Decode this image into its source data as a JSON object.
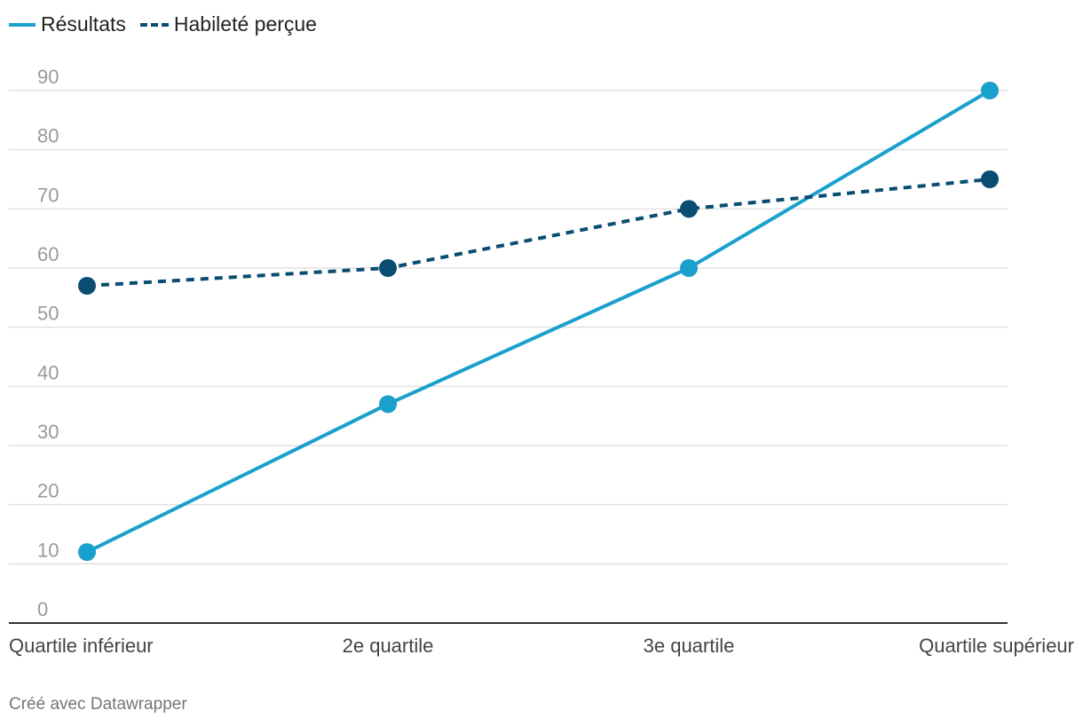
{
  "colors": {
    "series1": "#1aa0cc",
    "series2": "#0a4d72",
    "grid": "#e1e1e1",
    "axis": "#333333"
  },
  "legend": {
    "items": [
      {
        "label": "Résultats",
        "style": "solid"
      },
      {
        "label": "Habileté perçue",
        "style": "dashed"
      }
    ]
  },
  "footer": {
    "text": "Créé avec Datawrapper"
  },
  "chart_data": {
    "type": "line",
    "title": "",
    "xlabel": "",
    "ylabel": "",
    "categories": [
      "Quartile inférieur",
      "2e quartile",
      "3e quartile",
      "Quartile supérieur"
    ],
    "y_ticks": [
      0,
      10,
      20,
      30,
      40,
      50,
      60,
      70,
      80,
      90
    ],
    "ylim": [
      0,
      90
    ],
    "grid": true,
    "legend_position": "top-left",
    "series": [
      {
        "name": "Résultats",
        "values": [
          12,
          37,
          60,
          90
        ],
        "style": "solid"
      },
      {
        "name": "Habileté perçue",
        "values": [
          57,
          60,
          70,
          75
        ],
        "style": "dashed"
      }
    ]
  }
}
